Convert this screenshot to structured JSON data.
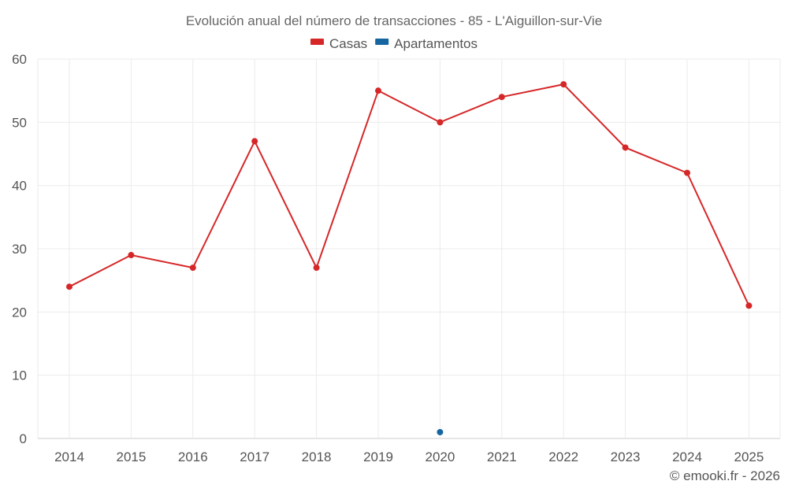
{
  "chart_data": {
    "type": "line",
    "title": "Evolución anual del número de transacciones - 85 - L'Aiguillon-sur-Vie",
    "categories": [
      "2014",
      "2015",
      "2016",
      "2017",
      "2018",
      "2019",
      "2020",
      "2021",
      "2022",
      "2023",
      "2024",
      "2025"
    ],
    "series": [
      {
        "name": "Casas",
        "color": "#d62728",
        "values": [
          24,
          29,
          27,
          47,
          27,
          55,
          50,
          54,
          56,
          46,
          42,
          21
        ]
      },
      {
        "name": "Apartamentos",
        "color": "#1565a0",
        "values": [
          null,
          null,
          null,
          null,
          null,
          null,
          1,
          null,
          null,
          null,
          null,
          null
        ]
      }
    ],
    "ylim": [
      0,
      60
    ],
    "yticks": [
      "0",
      "10",
      "20",
      "30",
      "40",
      "50",
      "60"
    ],
    "grid": true,
    "legend_position": "top-center"
  },
  "credit": "© emooki.fr - 2026"
}
